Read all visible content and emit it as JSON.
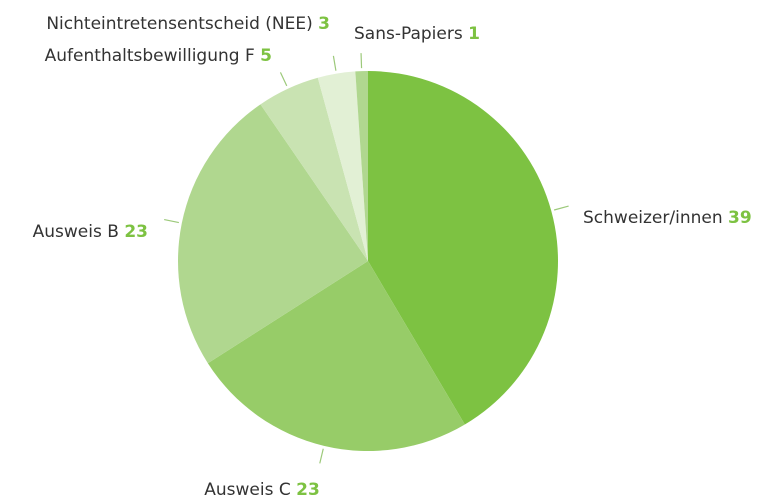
{
  "chart_data": {
    "type": "pie",
    "categories": [
      "Schweizer/innen",
      "Ausweis C",
      "Ausweis B",
      "Aufenthaltsbewilligung F",
      "Nichteintretensentscheid (NEE)",
      "Sans-Papiers"
    ],
    "values": [
      39,
      23,
      23,
      5,
      3,
      1
    ],
    "colors": [
      "#7dc242",
      "#97cc68",
      "#b0d78f",
      "#c9e3b2",
      "#e2f0d5",
      "#b0d78f"
    ],
    "value_color": "#7dc242"
  }
}
